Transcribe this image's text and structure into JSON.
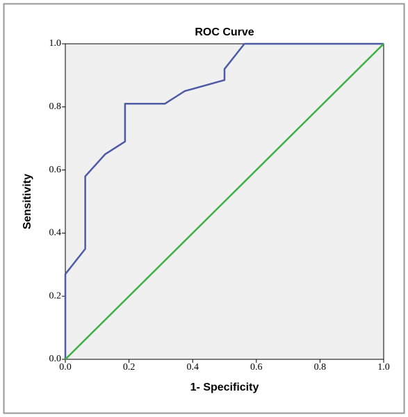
{
  "chart_data": {
    "type": "line",
    "title": "ROC Curve",
    "x_label": "1- Specificity",
    "y_label": "Sensitivity",
    "xlim": [
      0,
      1
    ],
    "ylim": [
      0,
      1
    ],
    "xticks": [
      {
        "value": 0,
        "label": "0.0"
      },
      {
        "value": 0.2,
        "label": "0.2"
      },
      {
        "value": 0.4,
        "label": "0.4"
      },
      {
        "value": 0.6,
        "label": "0.6"
      },
      {
        "value": 0.8,
        "label": "0.8"
      },
      {
        "value": 1,
        "label": "1.0"
      }
    ],
    "yticks": [
      {
        "value": 0,
        "label": "0.0"
      },
      {
        "value": 0.2,
        "label": "0.2"
      },
      {
        "value": 0.4,
        "label": "0.4"
      },
      {
        "value": 0.6,
        "label": "0.6"
      },
      {
        "value": 0.8,
        "label": "0.8"
      },
      {
        "value": 1,
        "label": "1.0"
      }
    ],
    "grid": false,
    "series": [
      {
        "color": "#4d5aa6",
        "x": [
          0,
          0,
          0.0625,
          0.0625,
          0.125,
          0.1875,
          0.1875,
          0.3125,
          0.375,
          0.5,
          0.5,
          0.5625,
          1
        ],
        "values": [
          0,
          0.27,
          0.35,
          0.58,
          0.65,
          0.69,
          0.81,
          0.81,
          0.85,
          0.885,
          0.92,
          1,
          1
        ]
      },
      {
        "color": "#3cb043",
        "x": [
          0,
          1
        ],
        "values": [
          0,
          1
        ]
      }
    ]
  }
}
